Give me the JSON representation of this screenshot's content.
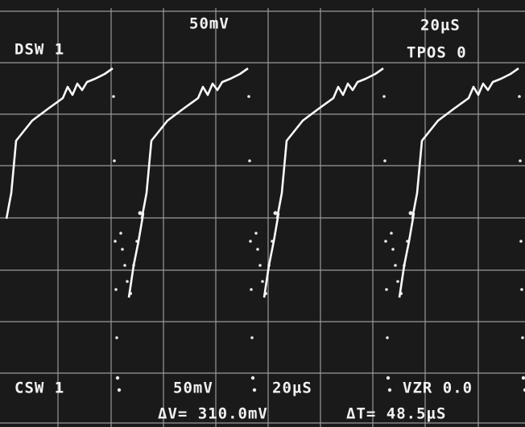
{
  "top": {
    "volts_per_div": "50mV",
    "time_per_div": "20µS",
    "display_setting": "DSW 1",
    "trigger_position": "TPOS 0"
  },
  "bottom": {
    "cursor_setting": "CSW 1",
    "volts_per_div": "50mV",
    "time_per_div": "20µS",
    "zero_ref": "VZR 0.0",
    "delta_v": "ΔV= 310.0mV",
    "delta_t": "ΔT= 48.5µS"
  }
}
